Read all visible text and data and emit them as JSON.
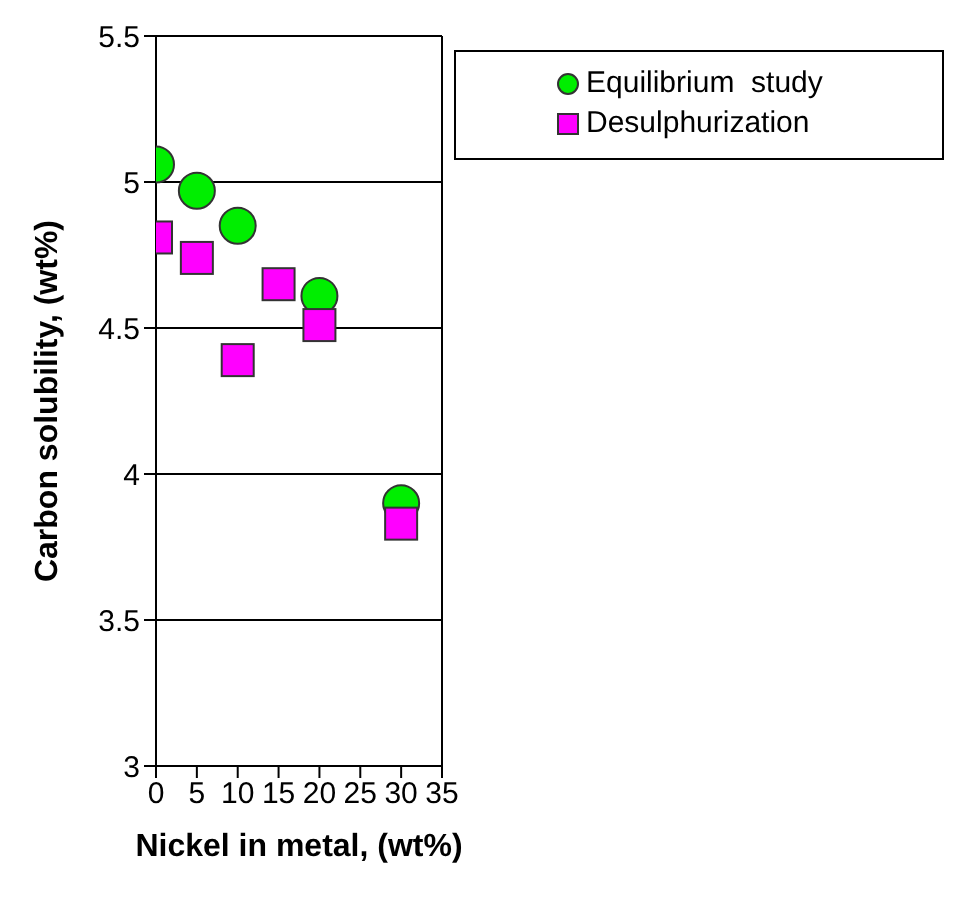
{
  "chart_data": {
    "type": "scatter",
    "xlabel": "Nickel in metal, (wt%)",
    "ylabel": "Carbon solubility, (wt%)",
    "xlim": [
      0,
      35
    ],
    "xticks": [
      0,
      5,
      10,
      15,
      20,
      25,
      30,
      35
    ],
    "ylim": [
      3,
      5.5
    ],
    "yticks": [
      3,
      3.5,
      4,
      4.5,
      5,
      5.5
    ],
    "grid": "y",
    "legend": "top right",
    "series": [
      {
        "name": "Equilibrium  study",
        "color": "#00ee00",
        "marker": "circle",
        "x": [
          0,
          5,
          10,
          20,
          30
        ],
        "values": [
          5.06,
          4.97,
          4.85,
          4.61,
          3.9
        ]
      },
      {
        "name": "Desulphurization",
        "color": "#ff00ff",
        "marker": "square",
        "x": [
          0,
          5,
          10,
          15,
          20,
          30
        ],
        "values": [
          4.81,
          4.74,
          4.39,
          4.65,
          4.51,
          3.83
        ]
      }
    ]
  }
}
